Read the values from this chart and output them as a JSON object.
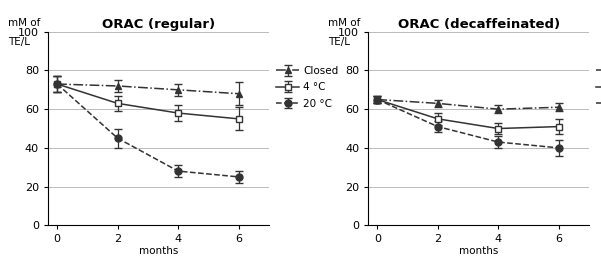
{
  "left": {
    "title": "ORAC (regular)",
    "ylabel_line1": "mM of",
    "ylabel_line2": "TE/L",
    "xlabel": "months",
    "xlim": [
      -0.3,
      7.0
    ],
    "ylim": [
      0,
      100
    ],
    "yticks": [
      0,
      20,
      40,
      60,
      80,
      100
    ],
    "xticks": [
      0,
      2,
      4,
      6
    ],
    "series": {
      "closed": {
        "x": [
          0,
          2,
          4,
          6
        ],
        "y": [
          73,
          72,
          70,
          68
        ],
        "yerr": [
          4,
          3,
          3,
          6
        ],
        "label": "Closed",
        "linestyle": "dashdot",
        "marker": "^",
        "color": "#333333",
        "fillstyle": "full"
      },
      "4c": {
        "x": [
          0,
          2,
          4,
          6
        ],
        "y": [
          73,
          63,
          58,
          55
        ],
        "yerr": [
          4,
          4,
          4,
          6
        ],
        "label": "4 °C",
        "linestyle": "solid",
        "marker": "s",
        "color": "#333333",
        "fillstyle": "none"
      },
      "20c": {
        "x": [
          0,
          2,
          4,
          6
        ],
        "y": [
          73,
          45,
          28,
          25
        ],
        "yerr": [
          4,
          5,
          3,
          3
        ],
        "label": "20 °C",
        "linestyle": "dashed",
        "marker": "o",
        "color": "#333333",
        "fillstyle": "full"
      }
    }
  },
  "right": {
    "title": "ORAC (decaffeinated)",
    "ylabel_line1": "mM of",
    "ylabel_line2": "TE/L",
    "xlabel": "months",
    "xlim": [
      -0.3,
      7.0
    ],
    "ylim": [
      0,
      100
    ],
    "yticks": [
      0,
      20,
      40,
      60,
      80,
      100
    ],
    "xticks": [
      0,
      2,
      4,
      6
    ],
    "series": {
      "closed": {
        "x": [
          0,
          2,
          4,
          6
        ],
        "y": [
          65,
          63,
          60,
          61
        ],
        "yerr": [
          2,
          2,
          2,
          2
        ],
        "label": "Closed",
        "linestyle": "dashdot",
        "marker": "^",
        "color": "#333333",
        "fillstyle": "full"
      },
      "4c": {
        "x": [
          0,
          2,
          4,
          6
        ],
        "y": [
          65,
          55,
          50,
          51
        ],
        "yerr": [
          2,
          3,
          3,
          4
        ],
        "label": "4 °C",
        "linestyle": "solid",
        "marker": "s",
        "color": "#333333",
        "fillstyle": "none"
      },
      "20c": {
        "x": [
          0,
          2,
          4,
          6
        ],
        "y": [
          65,
          51,
          43,
          40
        ],
        "yerr": [
          2,
          3,
          3,
          4
        ],
        "label": "20 °C",
        "linestyle": "dashed",
        "marker": "o",
        "color": "#333333",
        "fillstyle": "full"
      }
    }
  },
  "bg_color": "#ffffff",
  "grid_color": "#bbbbbb",
  "legend_fontsize": 7.5,
  "title_fontsize": 9.5,
  "label_fontsize": 7.5,
  "tick_fontsize": 8
}
